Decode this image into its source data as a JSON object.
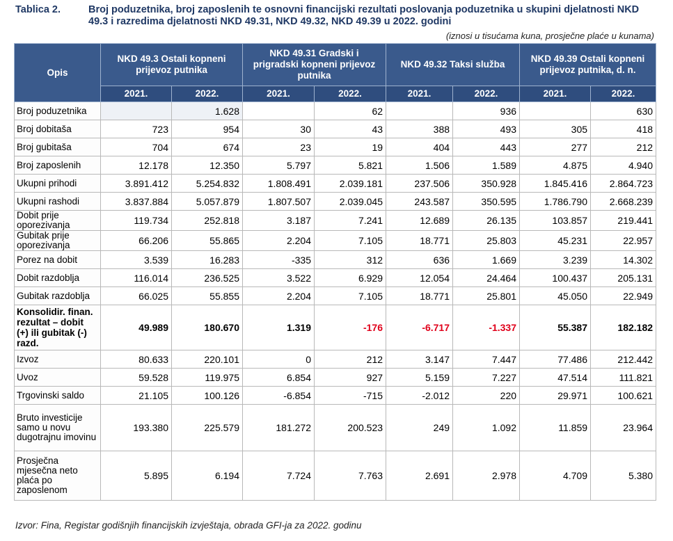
{
  "caption": {
    "label": "Tablica 2.",
    "title": "Broj poduzetnika, broj zaposlenih te osnovni financijski rezultati poslovanja poduzetnika u skupini djelatnosti NKD 49.3 i razredima djelatnosti NKD 49.31, NKD 49.32, NKD 49.39 u 2022. godini",
    "note": "(iznosi u tisućama kuna, prosječne plaće u kunama)"
  },
  "table": {
    "desc_header": "Opis",
    "groups": [
      "NKD 49.3 Ostali kopneni prijevoz putnika",
      "NKD 49.31 Gradski i prigradski kopneni prijevoz putnika",
      "NKD 49.32 Taksi služba",
      "NKD 49.39 Ostali kopneni prijevoz putnika, d. n."
    ],
    "years": [
      "2021.",
      "2022.",
      "2021.",
      "2022.",
      "2021.",
      "2022.",
      "2021.",
      "2022."
    ],
    "rows": [
      {
        "label": "Broj poduzetnika",
        "values": [
          "",
          "1.628",
          "",
          "62",
          "",
          "936",
          "",
          "630"
        ]
      },
      {
        "label": "Broj dobitaša",
        "values": [
          "723",
          "954",
          "30",
          "43",
          "388",
          "493",
          "305",
          "418"
        ]
      },
      {
        "label": "Broj gubitaša",
        "values": [
          "704",
          "674",
          "23",
          "19",
          "404",
          "443",
          "277",
          "212"
        ]
      },
      {
        "label": "Broj zaposlenih",
        "values": [
          "12.178",
          "12.350",
          "5.797",
          "5.821",
          "1.506",
          "1.589",
          "4.875",
          "4.940"
        ]
      },
      {
        "label": "Ukupni prihodi",
        "values": [
          "3.891.412",
          "5.254.832",
          "1.808.491",
          "2.039.181",
          "237.506",
          "350.928",
          "1.845.416",
          "2.864.723"
        ]
      },
      {
        "label": "Ukupni rashodi",
        "values": [
          "3.837.884",
          "5.057.879",
          "1.807.507",
          "2.039.045",
          "243.587",
          "350.595",
          "1.786.790",
          "2.668.239"
        ]
      },
      {
        "label": "Dobit prije oporezivanja",
        "values": [
          "119.734",
          "252.818",
          "3.187",
          "7.241",
          "12.689",
          "26.135",
          "103.857",
          "219.441"
        ]
      },
      {
        "label": "Gubitak prije oporezivanja",
        "values": [
          "66.206",
          "55.865",
          "2.204",
          "7.105",
          "18.771",
          "25.803",
          "45.231",
          "22.957"
        ]
      },
      {
        "label": "Porez na dobit",
        "values": [
          "3.539",
          "16.283",
          "-335",
          "312",
          "636",
          "1.669",
          "3.239",
          "14.302"
        ]
      },
      {
        "label": "Dobit razdoblja",
        "values": [
          "116.014",
          "236.525",
          "3.522",
          "6.929",
          "12.054",
          "24.464",
          "100.437",
          "205.131"
        ]
      },
      {
        "label": "Gubitak razdoblja",
        "values": [
          "66.025",
          "55.855",
          "2.204",
          "7.105",
          "18.771",
          "25.801",
          "45.050",
          "22.949"
        ]
      },
      {
        "label": "Konsolidir. finan. rezultat – dobit (+) ili gubitak (-) razd.",
        "values": [
          "49.989",
          "180.670",
          "1.319",
          "-176",
          "-6.717",
          "-1.337",
          "55.387",
          "182.182"
        ]
      },
      {
        "label": "Izvoz",
        "values": [
          "80.633",
          "220.101",
          "0",
          "212",
          "3.147",
          "7.447",
          "77.486",
          "212.442"
        ]
      },
      {
        "label": "Uvoz",
        "values": [
          "59.528",
          "119.975",
          "6.854",
          "927",
          "5.159",
          "7.227",
          "47.514",
          "111.821"
        ]
      },
      {
        "label": "Trgovinski saldo",
        "values": [
          "21.105",
          "100.126",
          "-6.854",
          "-715",
          "-2.012",
          "220",
          "29.971",
          "100.621"
        ]
      },
      {
        "label": "Bruto investicije samo u novu dugotrajnu imovinu",
        "values": [
          "193.380",
          "225.579",
          "181.272",
          "200.523",
          "249",
          "1.092",
          "11.859",
          "23.964"
        ]
      },
      {
        "label": "Prosječna mjesečna neto plaća po zaposlenom",
        "values": [
          "5.895",
          "6.194",
          "7.724",
          "7.763",
          "2.691",
          "2.978",
          "4.709",
          "5.380"
        ]
      }
    ]
  },
  "source": "Izvor: Fina, Registar godišnjih financijskih izvještaja, obrada GFI-ja za 2022. godinu",
  "colors": {
    "header_bg": "#3a5a8c",
    "negative_bold": "#e0001a",
    "caption": "#1f3864"
  }
}
